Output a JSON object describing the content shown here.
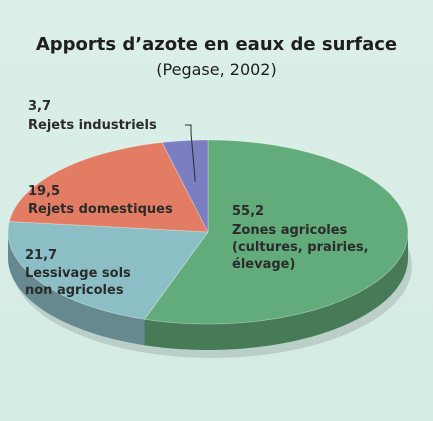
{
  "chart_data": {
    "type": "pie3d",
    "title": "Apports d’azote en eaux de surface",
    "subtitle": "(Pegase, 2002)",
    "categories": [
      "Zones agricoles (cultures, prairies, élevage)",
      "Lessivage sols non agricoles",
      "Rejets domestiques",
      "Rejets industriels"
    ],
    "values": [
      55.2,
      21.7,
      19.5,
      3.7
    ],
    "value_labels": [
      "55,2",
      "21,7",
      "19,5",
      "3,7"
    ],
    "colors": [
      "#62ab7a",
      "#8cbec6",
      "#e27d64",
      "#7b7fc2"
    ]
  }
}
